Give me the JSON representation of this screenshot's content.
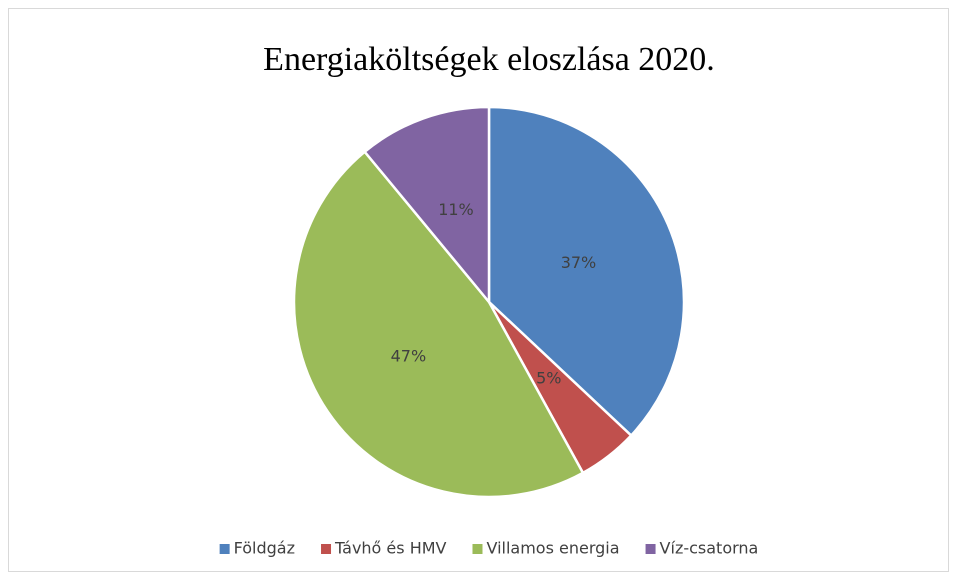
{
  "chart_data": {
    "type": "pie",
    "title": "Energiaköltségek eloszlása 2020.",
    "categories": [
      "Földgáz",
      "Távhő és HMV",
      "Villamos energia",
      "Víz-csatorna"
    ],
    "values": [
      37,
      5,
      47,
      11
    ],
    "value_labels": [
      "37%",
      "5%",
      "47%",
      "11%"
    ],
    "colors": [
      "#4f81bd",
      "#c0504d",
      "#9bbb59",
      "#8064a2"
    ],
    "legend": "bottom"
  }
}
